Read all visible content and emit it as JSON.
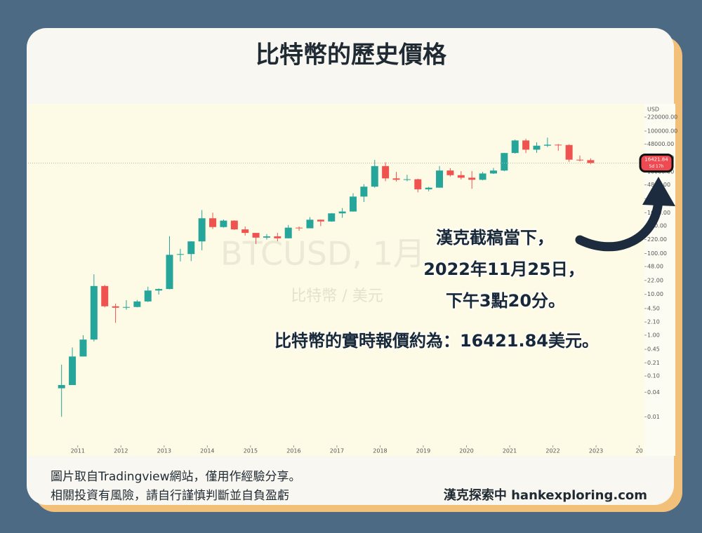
{
  "header": {
    "title": "比特幣的歷史價格"
  },
  "chart_data": {
    "type": "candlestick",
    "watermark": "BTCUSD, 1月",
    "watermark_subtitle": "比特幣 / 美元",
    "y_unit": "USD",
    "log_scale": true,
    "grid": false,
    "up_color": "#26a69a",
    "down_color": "#ef5350",
    "x": [
      2010.625,
      2010.875,
      2011.125,
      2011.375,
      2011.625,
      2011.875,
      2012.125,
      2012.375,
      2012.625,
      2012.875,
      2013.125,
      2013.375,
      2013.625,
      2013.875,
      2014.125,
      2014.375,
      2014.625,
      2014.875,
      2015.125,
      2015.375,
      2015.625,
      2015.875,
      2016.125,
      2016.375,
      2016.625,
      2016.875,
      2017.125,
      2017.375,
      2017.625,
      2017.875,
      2018.125,
      2018.375,
      2018.625,
      2018.875,
      2019.125,
      2019.375,
      2019.625,
      2019.875,
      2020.125,
      2020.375,
      2020.625,
      2020.875,
      2021.125,
      2021.375,
      2021.625,
      2021.875,
      2022.125,
      2022.375,
      2022.625,
      2022.875
    ],
    "open": [
      0.05,
      0.06,
      0.3,
      0.78,
      16,
      5.1,
      4.7,
      4.9,
      6.7,
      12.4,
      13.5,
      93,
      97,
      198,
      730,
      445,
      640,
      390,
      320,
      245,
      263,
      236,
      430,
      415,
      673,
      610,
      963,
      1070,
      2480,
      4340,
      13850,
      6930,
      6400,
      6600,
      3740,
      4100,
      10800,
      8300,
      7200,
      6400,
      9130,
      10780,
      28990,
      58800,
      35000,
      43800,
      46300,
      45500,
      19900,
      19400
    ],
    "high": [
      0.19,
      0.5,
      1.0,
      31,
      17,
      5.9,
      7.2,
      7.3,
      15.4,
      14,
      266,
      130,
      200,
      1163,
      1000,
      680,
      650,
      460,
      320,
      300,
      320,
      500,
      460,
      780,
      680,
      980,
      1300,
      3000,
      5000,
      19700,
      17200,
      9990,
      8500,
      6800,
      4300,
      13900,
      12300,
      10400,
      10500,
      10000,
      12500,
      29300,
      61800,
      64900,
      52900,
      69000,
      48200,
      47500,
      25200,
      21400
    ],
    "low": [
      0.01,
      0.06,
      0.3,
      0.7,
      4.8,
      2.0,
      4.2,
      4.8,
      6.5,
      9.9,
      13.3,
      64,
      65,
      120,
      400,
      430,
      380,
      275,
      170,
      220,
      200,
      235,
      360,
      415,
      470,
      600,
      750,
      1060,
      1830,
      4100,
      5900,
      5800,
      5900,
      3150,
      3350,
      4100,
      7700,
      6500,
      3850,
      6200,
      8900,
      10400,
      28000,
      28800,
      29300,
      40500,
      32900,
      17600,
      18100,
      15500
    ],
    "close": [
      0.06,
      0.3,
      0.78,
      16,
      5.1,
      4.7,
      4.9,
      6.7,
      12.4,
      13.5,
      93,
      97,
      198,
      730,
      445,
      640,
      390,
      320,
      245,
      263,
      236,
      430,
      415,
      673,
      610,
      963,
      1070,
      2480,
      4340,
      13850,
      6930,
      6400,
      6600,
      3740,
      4100,
      10800,
      8300,
      7200,
      6400,
      9130,
      10780,
      28990,
      58800,
      35000,
      43800,
      46300,
      45500,
      19900,
      19400,
      16421.84
    ],
    "last_price": 16421.84,
    "countdown": "5d 17h",
    "xlim": [
      2009.85,
      2024.12
    ],
    "xticks": [
      2011,
      2012,
      2013,
      2014,
      2015,
      2016,
      2017,
      2018,
      2019,
      2020,
      2021,
      2022,
      2023,
      {
        "value": 2024,
        "label": "20"
      }
    ],
    "ylim": [
      0.002,
      430000
    ],
    "yticks": [
      {
        "value": 220000,
        "label": "220000.00"
      },
      {
        "value": 100000,
        "label": "100000.00"
      },
      {
        "value": 48000,
        "label": "48000.00"
      },
      {
        "value": 22000,
        "label": "22000.00"
      },
      {
        "value": 10000,
        "label": "10000.00"
      },
      {
        "value": 4800,
        "label": "4800.00"
      },
      {
        "value": 2200,
        "label": "2200.00"
      },
      {
        "value": 1000,
        "label": "1000.00"
      },
      {
        "value": 480,
        "label": "480.00"
      },
      {
        "value": 220,
        "label": "220.00"
      },
      {
        "value": 100,
        "label": "100.00"
      },
      {
        "value": 48,
        "label": "48.00"
      },
      {
        "value": 22,
        "label": "22.00"
      },
      {
        "value": 10,
        "label": "10.00"
      },
      {
        "value": 4.5,
        "label": "4.50"
      },
      {
        "value": 2.1,
        "label": "2.10"
      },
      {
        "value": 1,
        "label": "1.00"
      },
      0.45,
      0.21,
      {
        "value": 0.1,
        "label": "0.10"
      },
      0.04,
      0.01
    ]
  },
  "annotation": {
    "lines": [
      "漢克截稿當下，",
      "2022年11月25日，",
      "下午3點20分。",
      "比特幣的實時報價約為：16421.84美元。"
    ]
  },
  "footer": {
    "notes": [
      "圖片取自Tradingview網站，僅用作經驗分享。",
      "相關投資有風險，請自行謹慎判斷並自負盈虧"
    ],
    "brand": "漢克探索中 hankexploring.com"
  }
}
